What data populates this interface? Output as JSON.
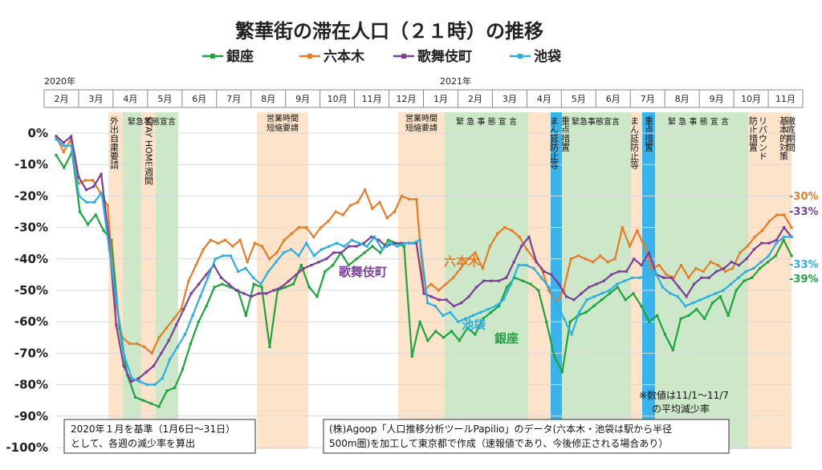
{
  "chart_data": {
    "type": "line",
    "title": "繁華街の滞在人口（２１時）の推移",
    "year_labels": [
      "2020年",
      "2021年"
    ],
    "months": [
      "2月",
      "3月",
      "4月",
      "5月",
      "6月",
      "7月",
      "8月",
      "9月",
      "10月",
      "11月",
      "12月",
      "1月",
      "2月",
      "3月",
      "4月",
      "5月",
      "6月",
      "7月",
      "8月",
      "9月",
      "10月",
      "11月"
    ],
    "yticks": [
      "0%",
      "-10%",
      "-20%",
      "-30%",
      "-40%",
      "-50%",
      "-60%",
      "-70%",
      "-80%",
      "-90%",
      "-100%"
    ],
    "ylim": [
      -100,
      5
    ],
    "series": [
      {
        "name": "銀座",
        "color": "#1fa33e",
        "values": [
          -7,
          -11,
          -6,
          -25,
          -29,
          -26,
          -31,
          -34,
          -62,
          -77,
          -84,
          -85,
          -86,
          -87,
          -82,
          -81,
          -75,
          -67,
          -60,
          -55,
          -49,
          -48,
          -49,
          -50,
          -58,
          -48,
          -49,
          -68,
          -50,
          -49,
          -48,
          -42,
          -49,
          -52,
          -44,
          -42,
          -38,
          -42,
          -40,
          -38,
          -36,
          -38,
          -34,
          -35,
          -36,
          -71,
          -60,
          -66,
          -63,
          -65,
          -63,
          -66,
          -62,
          -64,
          -59,
          -57,
          -55,
          -49,
          -46,
          -47,
          -48,
          -50,
          -60,
          -71,
          -76,
          -60,
          -58,
          -57,
          -55,
          -53,
          -51,
          -49,
          -53,
          -51,
          -55,
          -60,
          -58,
          -64,
          -69,
          -59,
          -58,
          -56,
          -59,
          -54,
          -52,
          -58,
          -50,
          -47,
          -46,
          -43,
          -41,
          -39,
          -34,
          -39
        ]
      },
      {
        "name": "六本木",
        "color": "#e57d28",
        "values": [
          -1,
          -6,
          -2,
          -16,
          -15,
          -15,
          -19,
          -23,
          -53,
          -65,
          -67,
          -67,
          -68,
          -70,
          -65,
          -62,
          -59,
          -56,
          -47,
          -42,
          -37,
          -34,
          -35,
          -34,
          -36,
          -34,
          -41,
          -35,
          -36,
          -40,
          -38,
          -34,
          -32,
          -30,
          -30,
          -33,
          -30,
          -28,
          -25,
          -26,
          -23,
          -22,
          -18,
          -24,
          -22,
          -27,
          -25,
          -20,
          -21,
          -21,
          -50,
          -48,
          -50,
          -48,
          -46,
          -43,
          -40,
          -38,
          -43,
          -36,
          -32,
          -30,
          -31,
          -33,
          -37,
          -40,
          -43,
          -50,
          -54,
          -50,
          -40,
          -39,
          -40,
          -41,
          -39,
          -41,
          -40,
          -30,
          -36,
          -31,
          -36,
          -43,
          -42,
          -45,
          -46,
          -42,
          -46,
          -43,
          -44,
          -41,
          -42,
          -44,
          -43,
          -38,
          -36,
          -33,
          -31,
          -28,
          -26,
          -26,
          -30
        ]
      },
      {
        "name": "歌舞伎町",
        "color": "#7a3f98",
        "values": [
          -1,
          -3,
          -1,
          -14,
          -18,
          -17,
          -13,
          -33,
          -61,
          -74,
          -79,
          -78,
          -76,
          -74,
          -70,
          -66,
          -61,
          -56,
          -51,
          -48,
          -45,
          -42,
          -46,
          -48,
          -50,
          -51,
          -52,
          -51,
          -51,
          -50,
          -49,
          -47,
          -45,
          -43,
          -42,
          -41,
          -40,
          -38,
          -38,
          -36,
          -36,
          -35,
          -33,
          -34,
          -36,
          -35,
          -35,
          -35,
          -35,
          -51,
          -52,
          -53,
          -53,
          -55,
          -54,
          -52,
          -49,
          -47,
          -47,
          -47,
          -46,
          -41,
          -36,
          -33,
          -41,
          -44,
          -45,
          -48,
          -52,
          -53,
          -51,
          -49,
          -48,
          -47,
          -45,
          -44,
          -44,
          -40,
          -42,
          -38,
          -45,
          -46,
          -46,
          -49,
          -52,
          -48,
          -46,
          -46,
          -44,
          -43,
          -41,
          -42,
          -40,
          -37,
          -35,
          -35,
          -34,
          -30,
          -33
        ]
      },
      {
        "name": "池袋",
        "color": "#2eaee0",
        "values": [
          -2,
          -4,
          -4,
          -20,
          -22,
          -22,
          -19,
          -37,
          -54,
          -71,
          -78,
          -79,
          -80,
          -80,
          -78,
          -72,
          -68,
          -64,
          -58,
          -52,
          -46,
          -40,
          -39,
          -39,
          -44,
          -43,
          -46,
          -48,
          -44,
          -41,
          -38,
          -37,
          -39,
          -35,
          -39,
          -37,
          -36,
          -35,
          -36,
          -34,
          -35,
          -36,
          -33,
          -37,
          -35,
          -36,
          -35,
          -35,
          -34,
          -54,
          -55,
          -58,
          -57,
          -60,
          -59,
          -58,
          -57,
          -56,
          -55,
          -53,
          -48,
          -42,
          -42,
          -43,
          -46,
          -49,
          -54,
          -59,
          -64,
          -57,
          -53,
          -52,
          -51,
          -50,
          -48,
          -47,
          -46,
          -46,
          -45,
          -44,
          -49,
          -51,
          -52,
          -55,
          -54,
          -53,
          -52,
          -51,
          -50,
          -48,
          -46,
          -44,
          -43,
          -41,
          -39,
          -35,
          -33,
          -33
        ]
      }
    ],
    "end_labels": [
      {
        "text": "-30%",
        "color": "#e57d28"
      },
      {
        "text": "-33%",
        "color": "#7a3f98"
      },
      {
        "text": "-33%",
        "color": "#2eaee0"
      },
      {
        "text": "-39%",
        "color": "#1fa33e"
      }
    ],
    "periods": [
      {
        "label": "外出自粛要請",
        "color": "#fde3c9"
      },
      {
        "label": "緊急事態宣言",
        "color": "#cde7c9"
      },
      {
        "label": "STAY HOME週間",
        "color": "#fde3c9"
      },
      {
        "label": "営業時間短縮要請",
        "color": "#fde3c9"
      },
      {
        "label": "営業時間短縮要請",
        "color": "#fde3c9"
      },
      {
        "label": "緊 急 事 態 宣 言",
        "color": "#cde7c9"
      },
      {
        "label": "まん延防止等",
        "color": "#fde3c9"
      },
      {
        "label": "重点措置",
        "color": "#39b3ea"
      },
      {
        "label": "緊急事態宣言",
        "color": "#cde7c9"
      },
      {
        "label": "まん延防止等",
        "color": "#fde3c9"
      },
      {
        "label": "重点措置",
        "color": "#39b3ea"
      },
      {
        "label": "緊 急 事 態 宣 言",
        "color": "#cde7c9"
      },
      {
        "label": "リバウンド",
        "color": "#fde3c9"
      },
      {
        "label": "防止措置",
        "color": "#fde3c9"
      },
      {
        "label": "基本的対策",
        "color": "#fde3c9"
      },
      {
        "label": "徹底期間",
        "color": "#fde3c9"
      }
    ],
    "notes": {
      "bottom_left": [
        "2020年１月を基準（1月6日～31日）",
        "として、各週の減少率を算出"
      ],
      "bottom_right": [
        "(株)Agoop「人口推移分析ツールPapilio」のデータ(六本木・池袋は駅から半径",
        "500m圏)を加工して東京都で作成（速報値であり、今後修正される場合あり）"
      ],
      "asterisk": [
        "※数値は11/1～11/7",
        "の平均減少率"
      ]
    }
  }
}
